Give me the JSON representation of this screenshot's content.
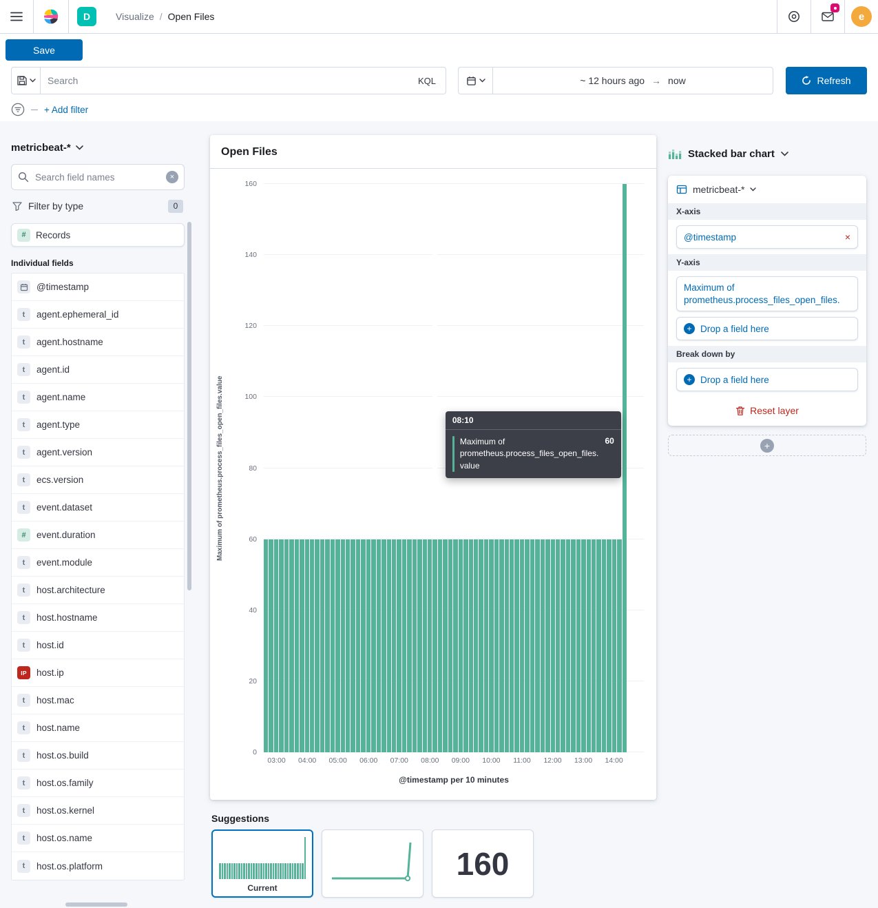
{
  "colors": {
    "primary": "#006bb4",
    "bar": "#54b399",
    "danger": "#bd271e",
    "notification_badge": "#dd0a73",
    "space_badge": "#00bfb3",
    "avatar_bg": "#f3a93c"
  },
  "navbar": {
    "breadcrumb_root": "Visualize",
    "breadcrumb_separator": "/",
    "breadcrumb_current": "Open Files",
    "space_initial": "D",
    "user_initial": "e"
  },
  "toolbar": {
    "save_label": "Save",
    "search_placeholder": "Search",
    "kql_label": "KQL",
    "time_from": "~ 12 hours ago",
    "time_arrow": "→",
    "time_to": "now",
    "refresh_label": "Refresh",
    "add_filter_label": "+ Add filter"
  },
  "sidebar": {
    "index_pattern": "metricbeat-*",
    "field_search_placeholder": "Search field names",
    "filter_by_type_label": "Filter by type",
    "filter_by_type_count": "0",
    "records_label": "Records",
    "individual_fields_label": "Individual fields",
    "fields": [
      {
        "name": "@timestamp",
        "type": "date"
      },
      {
        "name": "agent.ephemeral_id",
        "type": "string"
      },
      {
        "name": "agent.hostname",
        "type": "string"
      },
      {
        "name": "agent.id",
        "type": "string"
      },
      {
        "name": "agent.name",
        "type": "string"
      },
      {
        "name": "agent.type",
        "type": "string"
      },
      {
        "name": "agent.version",
        "type": "string"
      },
      {
        "name": "ecs.version",
        "type": "string"
      },
      {
        "name": "event.dataset",
        "type": "string"
      },
      {
        "name": "event.duration",
        "type": "number"
      },
      {
        "name": "event.module",
        "type": "string"
      },
      {
        "name": "host.architecture",
        "type": "string"
      },
      {
        "name": "host.hostname",
        "type": "string"
      },
      {
        "name": "host.id",
        "type": "string"
      },
      {
        "name": "host.ip",
        "type": "ip"
      },
      {
        "name": "host.mac",
        "type": "string"
      },
      {
        "name": "host.name",
        "type": "string"
      },
      {
        "name": "host.os.build",
        "type": "string"
      },
      {
        "name": "host.os.family",
        "type": "string"
      },
      {
        "name": "host.os.kernel",
        "type": "string"
      },
      {
        "name": "host.os.name",
        "type": "string"
      },
      {
        "name": "host.os.platform",
        "type": "string"
      }
    ]
  },
  "panel": {
    "title": "Open Files"
  },
  "chart_data": {
    "type": "bar",
    "title": "Open Files",
    "xlabel": "@timestamp per 10 minutes",
    "ylabel": "Maximum of prometheus.process_files_open_files.value",
    "ylim": [
      0,
      160
    ],
    "y_ticks": [
      0,
      20,
      40,
      60,
      80,
      100,
      120,
      140,
      160
    ],
    "x_tick_labels": [
      "03:00",
      "04:00",
      "05:00",
      "06:00",
      "07:00",
      "08:00",
      "09:00",
      "10:00",
      "11:00",
      "12:00",
      "13:00",
      "14:00"
    ],
    "start_time": "02:40",
    "interval_minutes": 10,
    "bar_color": "#54b399",
    "grid": true,
    "legend": "none",
    "highlight_time": "08:10",
    "values": [
      60,
      60,
      60,
      60,
      60,
      60,
      60,
      60,
      60,
      60,
      60,
      60,
      60,
      60,
      60,
      60,
      60,
      60,
      60,
      60,
      60,
      60,
      60,
      60,
      60,
      60,
      60,
      60,
      60,
      60,
      60,
      60,
      60,
      60,
      60,
      60,
      60,
      60,
      60,
      60,
      60,
      60,
      60,
      60,
      60,
      60,
      60,
      60,
      60,
      60,
      60,
      60,
      60,
      60,
      60,
      60,
      60,
      60,
      60,
      60,
      60,
      60,
      60,
      60,
      60,
      60,
      60,
      60,
      60,
      60,
      160
    ]
  },
  "tooltip": {
    "time": "08:10",
    "series": "Maximum of prometheus.process_files_open_files.value",
    "value": "60"
  },
  "config": {
    "chart_type_label": "Stacked bar chart",
    "layer_index_pattern": "metricbeat-*",
    "x_axis_label": "X-axis",
    "x_dimension": "@timestamp",
    "y_axis_label": "Y-axis",
    "y_dimension": "Maximum of prometheus.process_files_open_files.",
    "drop_field_label": "Drop a field here",
    "break_down_label": "Break down by",
    "reset_layer_label": "Reset layer"
  },
  "suggestions": {
    "title": "Suggestions",
    "current_label": "Current",
    "metric_value": "160"
  }
}
